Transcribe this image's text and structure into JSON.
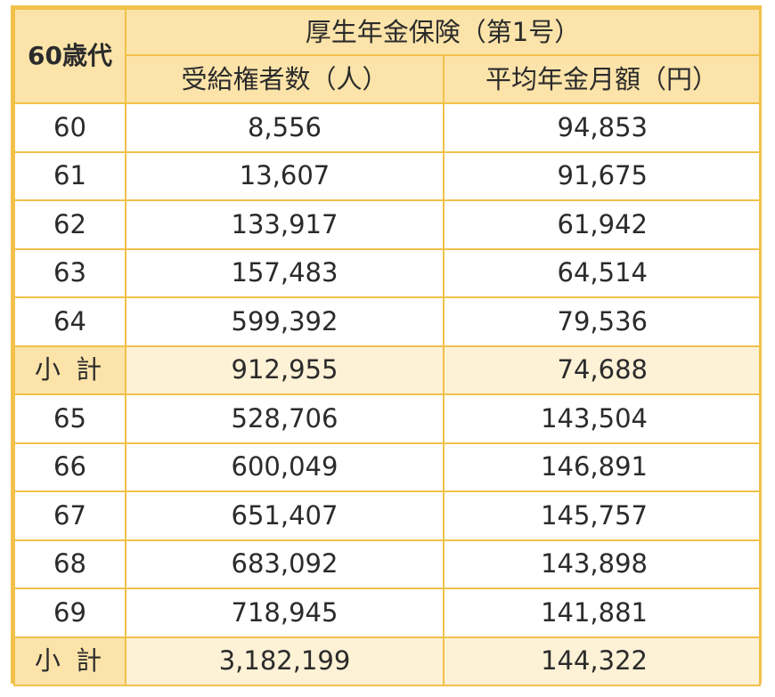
{
  "table": {
    "corner_label": "60歳代",
    "group_header": "厚生年金保険（第1号）",
    "col_recipients": "受給権者数（人）",
    "col_average": "平均年金月額（円）",
    "rows": [
      {
        "age": "60",
        "recipients": "8,556",
        "average": "94,853"
      },
      {
        "age": "61",
        "recipients": "13,607",
        "average": "91,675"
      },
      {
        "age": "62",
        "recipients": "133,917",
        "average": "61,942"
      },
      {
        "age": "63",
        "recipients": "157,483",
        "average": "64,514"
      },
      {
        "age": "64",
        "recipients": "599,392",
        "average": "79,536"
      },
      {
        "age": "小 計",
        "recipients": "912,955",
        "average": "74,688"
      },
      {
        "age": "65",
        "recipients": "528,706",
        "average": "143,504"
      },
      {
        "age": "66",
        "recipients": "600,049",
        "average": "146,891"
      },
      {
        "age": "67",
        "recipients": "651,407",
        "average": "145,757"
      },
      {
        "age": "68",
        "recipients": "683,092",
        "average": "143,898"
      },
      {
        "age": "69",
        "recipients": "718,945",
        "average": "141,881"
      },
      {
        "age": "小 計",
        "recipients": "3,182,199",
        "average": "144,322"
      }
    ]
  }
}
